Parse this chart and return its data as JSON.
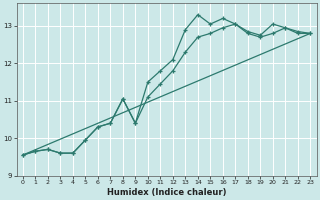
{
  "xlabel": "Humidex (Indice chaleur)",
  "bg_color": "#cce8e8",
  "grid_color": "#ffffff",
  "line_color": "#2d7a6e",
  "xlim": [
    -0.5,
    23.5
  ],
  "ylim": [
    9.0,
    13.6
  ],
  "yticks": [
    9,
    10,
    11,
    12,
    13
  ],
  "xticks": [
    0,
    1,
    2,
    3,
    4,
    5,
    6,
    7,
    8,
    9,
    10,
    11,
    12,
    13,
    14,
    15,
    16,
    17,
    18,
    19,
    20,
    21,
    22,
    23
  ],
  "line1_x": [
    0,
    1,
    2,
    3,
    4,
    5,
    6,
    7,
    8,
    9,
    10,
    11,
    12,
    13,
    14,
    15,
    16,
    17,
    18,
    19,
    20,
    21,
    22,
    23
  ],
  "line1_y": [
    9.55,
    9.65,
    9.7,
    9.6,
    9.6,
    9.95,
    10.3,
    10.4,
    11.05,
    10.4,
    11.5,
    11.8,
    12.1,
    12.9,
    13.3,
    13.05,
    13.2,
    13.05,
    12.85,
    12.75,
    13.05,
    12.95,
    12.8,
    12.8
  ],
  "line2_x": [
    0,
    1,
    2,
    3,
    4,
    5,
    6,
    7,
    8,
    9,
    10,
    11,
    12,
    13,
    14,
    15,
    16,
    17,
    18,
    19,
    20,
    21,
    22,
    23
  ],
  "line2_y": [
    9.55,
    9.65,
    9.7,
    9.6,
    9.6,
    9.95,
    10.3,
    10.4,
    11.05,
    10.4,
    11.1,
    11.45,
    11.8,
    12.3,
    12.7,
    12.8,
    12.95,
    13.05,
    12.8,
    12.7,
    12.8,
    12.95,
    12.85,
    12.8
  ],
  "line3_x": [
    0,
    23
  ],
  "line3_y": [
    9.55,
    12.8
  ]
}
